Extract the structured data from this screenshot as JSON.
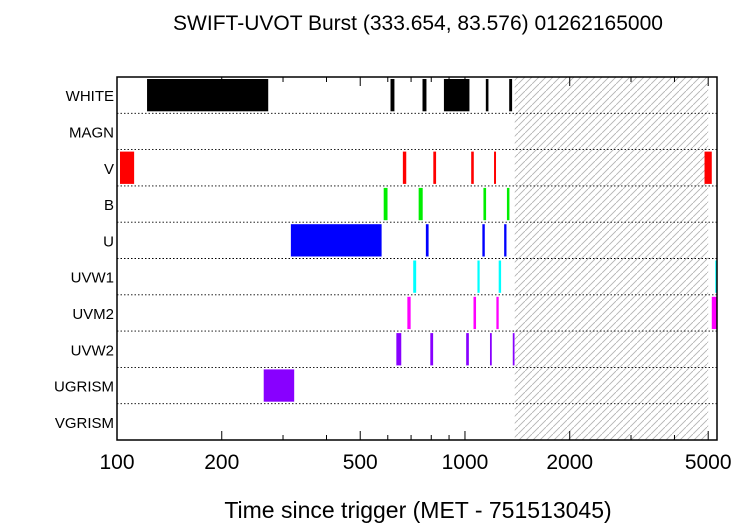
{
  "chart_data": {
    "type": "timeline",
    "title": "SWIFT-UVOT Burst (333.654, 83.576) 01262165000",
    "xlabel": "Time since trigger (MET - 751513045)",
    "xscale": "log",
    "xlim": [
      100,
      5300
    ],
    "x_ticks": [
      {
        "value": 100,
        "label": "100"
      },
      {
        "value": 200,
        "label": "200"
      },
      {
        "value": 500,
        "label": "500"
      },
      {
        "value": 1000,
        "label": "1000"
      },
      {
        "value": 2000,
        "label": "2000"
      },
      {
        "value": 5000,
        "label": "5000"
      }
    ],
    "hatched_region": [
      1390,
      5000
    ],
    "filters": [
      {
        "name": "WHITE",
        "color": "#000000",
        "intervals": [
          [
            122,
            272
          ],
          [
            611,
            627
          ],
          [
            755,
            775
          ],
          [
            870,
            1030
          ],
          [
            1148,
            1168
          ],
          [
            1340,
            1366
          ]
        ]
      },
      {
        "name": "MAGN",
        "color": "#000000",
        "intervals": []
      },
      {
        "name": "V",
        "color": "#ff0000",
        "intervals": [
          [
            102,
            112
          ],
          [
            663,
            678
          ],
          [
            811,
            826
          ],
          [
            1042,
            1060
          ],
          [
            1212,
            1228
          ],
          [
            4880,
            5120
          ]
        ]
      },
      {
        "name": "B",
        "color": "#00ee00",
        "intervals": [
          [
            584,
            599
          ],
          [
            736,
            756
          ],
          [
            1130,
            1150
          ],
          [
            1320,
            1342
          ]
        ]
      },
      {
        "name": "U",
        "color": "#0000ff",
        "intervals": [
          [
            316,
            576
          ],
          [
            772,
            786
          ],
          [
            1122,
            1140
          ],
          [
            1296,
            1316
          ]
        ]
      },
      {
        "name": "UVW1",
        "color": "#00ffff",
        "intervals": [
          [
            710,
            724
          ],
          [
            1086,
            1102
          ],
          [
            1250,
            1270
          ],
          [
            5240,
            5290
          ]
        ]
      },
      {
        "name": "UVM2",
        "color": "#ff00ff",
        "intervals": [
          [
            683,
            698
          ],
          [
            1058,
            1076
          ],
          [
            1231,
            1250
          ],
          [
            5120,
            5290
          ]
        ]
      },
      {
        "name": "UVW2",
        "color": "#8800ff",
        "intervals": [
          [
            635,
            656
          ],
          [
            795,
            810
          ],
          [
            1008,
            1026
          ],
          [
            1180,
            1194
          ],
          [
            1372,
            1388
          ]
        ]
      },
      {
        "name": "UGRISM",
        "color": "#8800ff",
        "intervals": [
          [
            264,
            323
          ]
        ]
      },
      {
        "name": "VGRISM",
        "color": "#8800ff",
        "intervals": []
      }
    ]
  }
}
